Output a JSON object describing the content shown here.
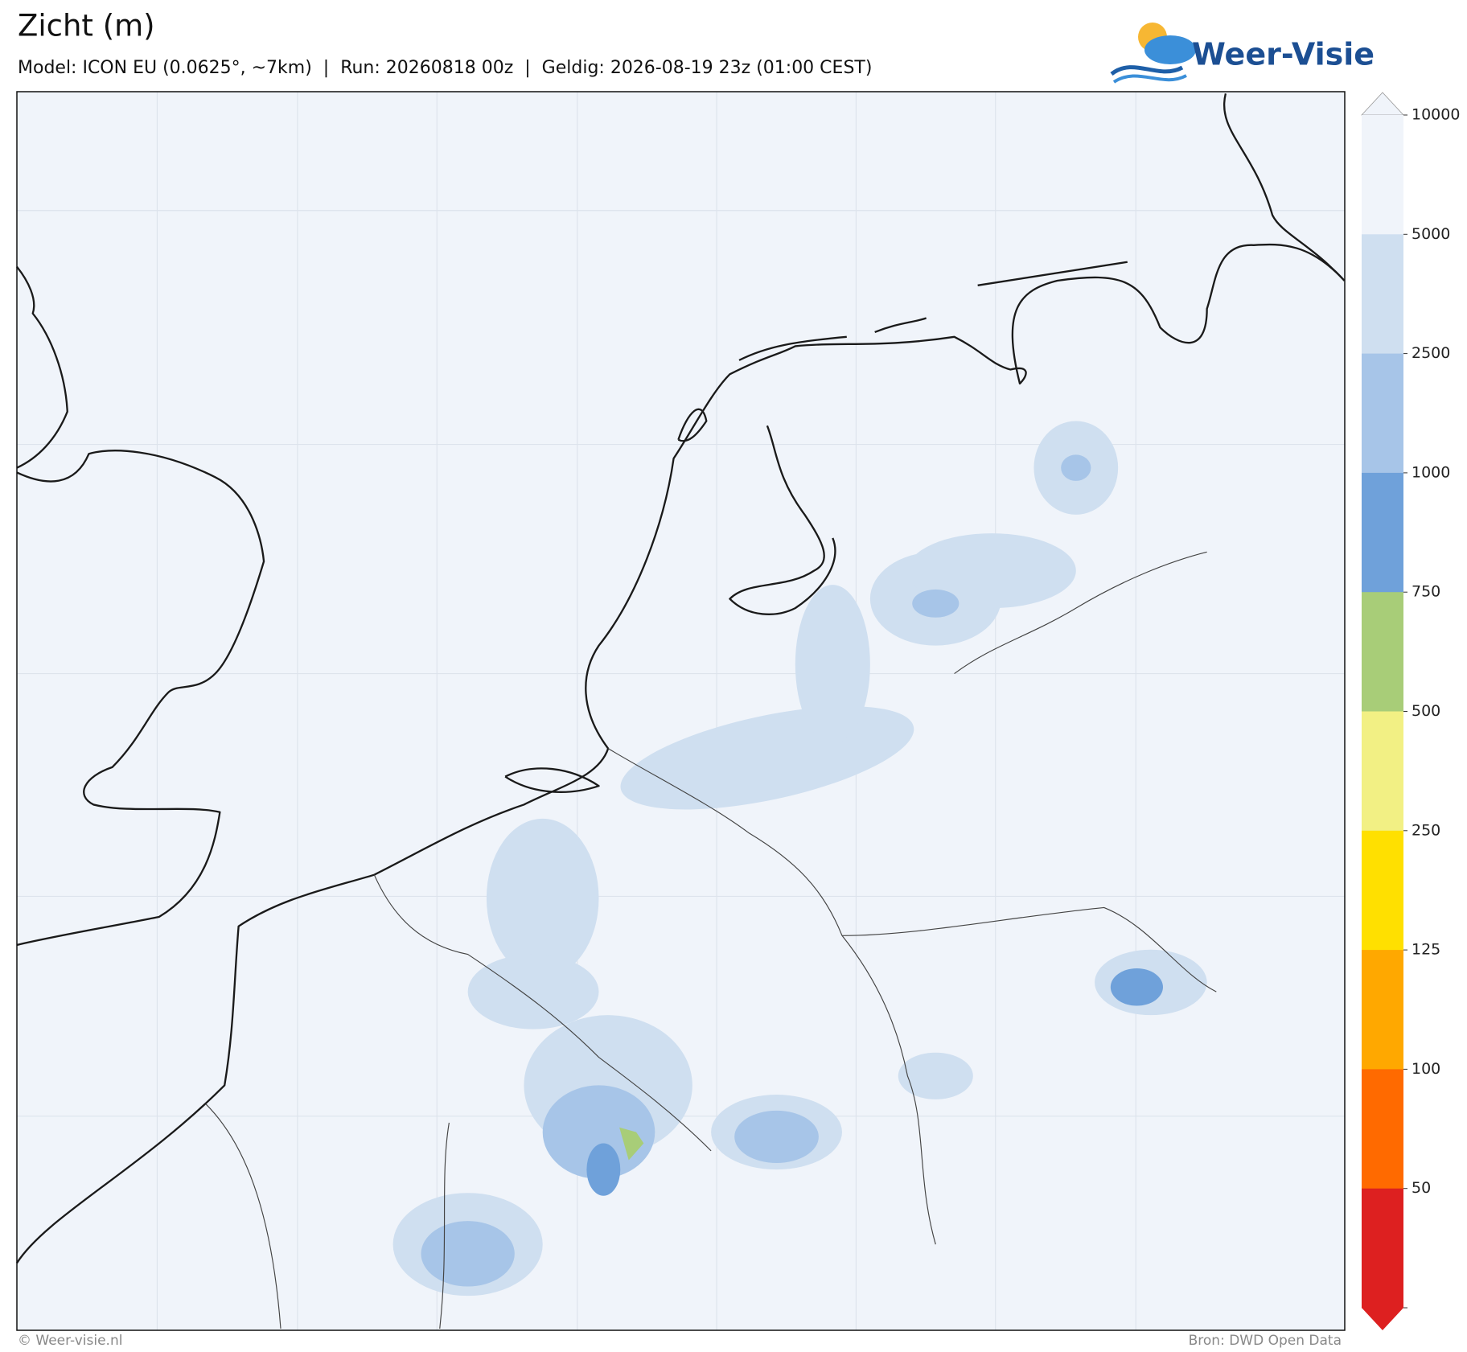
{
  "header": {
    "title": "Zicht (m)",
    "subtitle": "Model: ICON EU (0.0625°, ~7km)  |  Run: 20260818 00z  |  Geldig: 2026-08-19 23z (01:00 CEST)",
    "logo": "Weer-Visie"
  },
  "colorbar": {
    "ticks": [
      10000,
      5000,
      2500,
      1000,
      750,
      500,
      250,
      125,
      100,
      50
    ],
    "colors": [
      "#f0f4fa",
      "#cfdff0",
      "#a7c5e8",
      "#6fa1da",
      "#a8cd78",
      "#f2f084",
      "#ffe000",
      "#ffa800",
      "#ff6a00",
      "#dd2020"
    ]
  },
  "footer": {
    "left": "© Weer-visie.nl",
    "right": "Bron: DWD Open Data"
  }
}
